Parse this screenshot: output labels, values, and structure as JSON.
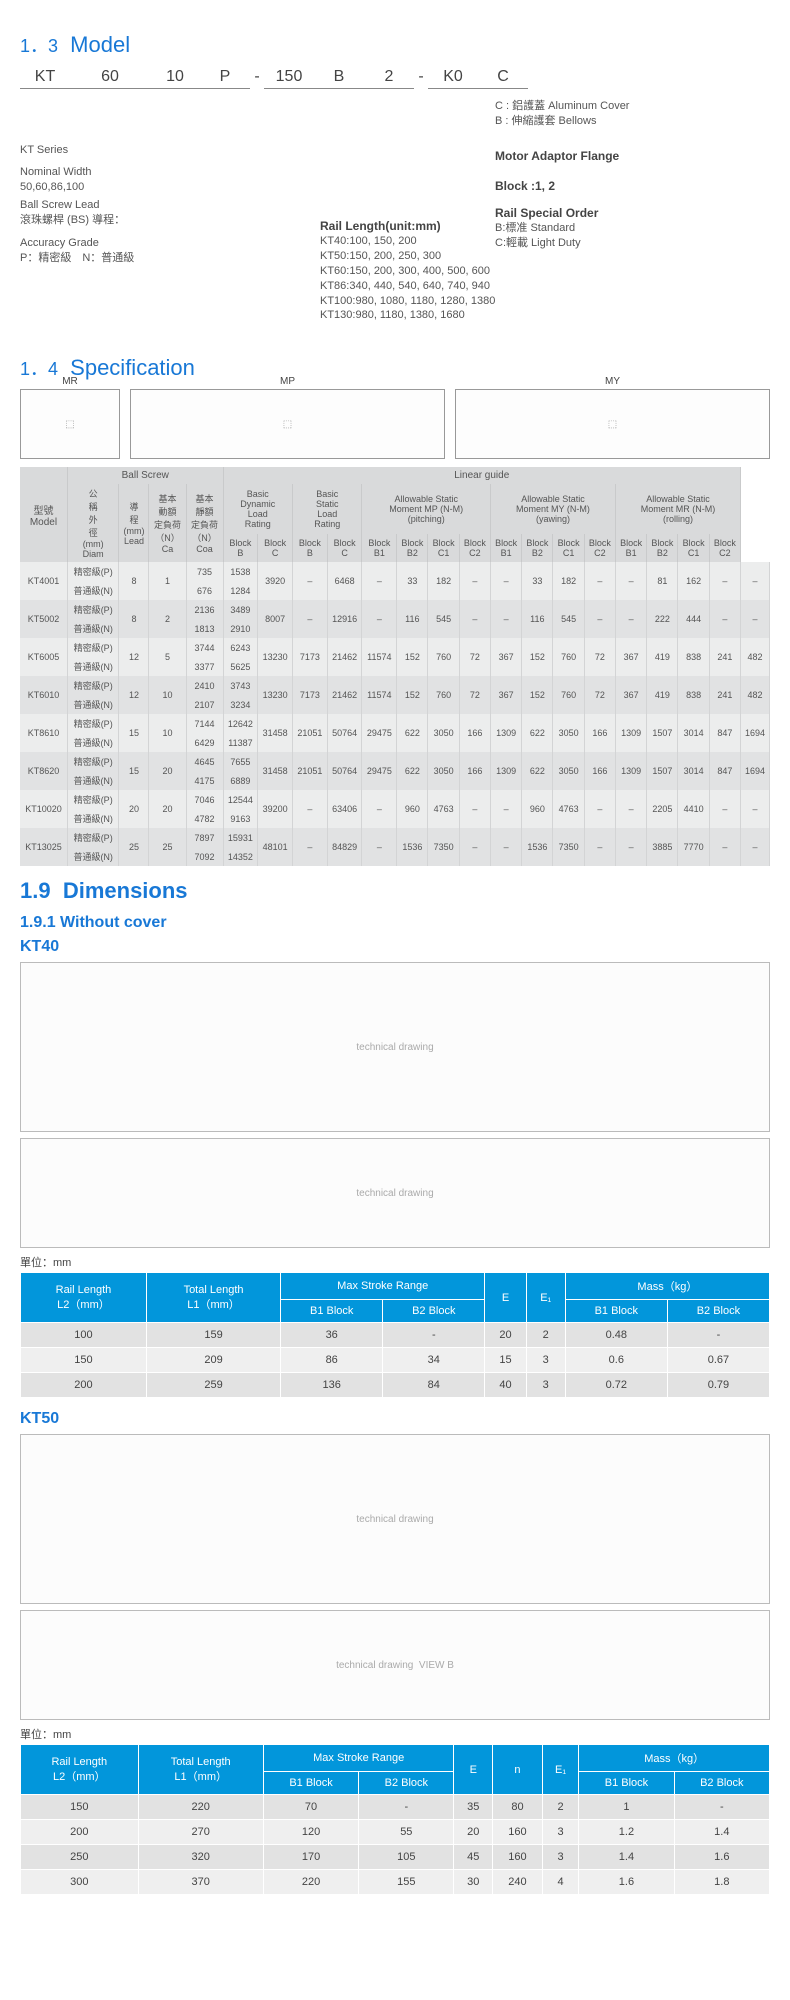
{
  "section_model": {
    "num": "1．3",
    "title": "Model"
  },
  "model_code": {
    "kt": "KT",
    "width": "60",
    "lead": "10",
    "grade": "P",
    "dash1": "-",
    "len": "150",
    "b": "B",
    "block": "2",
    "dash2": "-",
    "k0": "K0",
    "cover": "C"
  },
  "model_desc": {
    "series": "KT Series",
    "nominal_t": "Nominal Width",
    "nominal_v": "50,60,86,100",
    "bs_t": "Ball Screw Lead",
    "bs_v": "滾珠螺桿 (BS) 導程：",
    "acc_t": "Accuracy Grade",
    "acc_v": "P：精密級　N：普通級",
    "rail_title": "Rail Length(unit:mm)",
    "rail1": "KT40:100, 150, 200",
    "rail2": "KT50:150, 200, 250, 300",
    "rail3": "KT60:150, 200, 300, 400, 500, 600",
    "rail4": "KT86:340, 440, 540, 640, 740, 940",
    "rail5": "KT100:980, 1080, 1180, 1280, 1380",
    "rail6": "KT130:980, 1180, 1380, 1680",
    "cover_t": "C : 鋁護蓋 Aluminum Cover\nB : 伸縮護套 Bellows",
    "motor": "Motor Adaptor Flange",
    "block_t": "Block :1, 2",
    "special_t": "Rail Special Order",
    "special_v": "B:標准 Standard\nC:輕載 Light Duty"
  },
  "section_spec": {
    "num": "1．4",
    "title": "Specification"
  },
  "spec_head": {
    "ballscrew": "Ball Screw",
    "linear": "Linear guide",
    "model": "型號\nModel",
    "ext": "公\n稱\n外\n徑\n(mm)\nDiam",
    "lead": "導\n程\n(mm)\nLead",
    "dyn": "基本\n動額\n定負荷\n（N）\nCa",
    "sta": "基本\n靜額\n定負荷\n（N）\nCoa",
    "bdyn": "Basic\nDynamic\nLoad\nRating",
    "bsta": "Basic\nStatic\nLoad\nRating",
    "pitch": "Allowable Static\nMoment MP (N-M)\n(pitching)",
    "yaw": "Allowable Static\nMoment MY (N-M)\n(yawing)",
    "roll": "Allowable Static\nMoment MR (N-M)\n(rolling)",
    "blockB": "Block\nB",
    "blockC": "Block\nC",
    "b1": "Block\nB1",
    "b2": "Block\nB2",
    "c1": "Block\nC1",
    "c2": "Block\nC2"
  },
  "spec_rows": [
    {
      "m": "KT4001",
      "g": [
        "精密級(P)",
        "普通級(N)"
      ],
      "d": "8",
      "l": "1",
      "ca": [
        "735",
        "676"
      ],
      "coa": [
        "1538",
        "1284"
      ],
      "db": [
        "3920",
        ""
      ],
      "dc": [
        "–",
        ""
      ],
      "sb": [
        "6468",
        ""
      ],
      "sc": [
        "–",
        ""
      ],
      "pb1": [
        "33",
        ""
      ],
      "pb2": [
        "182",
        ""
      ],
      "pc1": [
        "–",
        ""
      ],
      "pc2": [
        "–",
        ""
      ],
      "yb1": [
        "33",
        ""
      ],
      "yb2": [
        "182",
        ""
      ],
      "yc1": [
        "–",
        ""
      ],
      "yc2": [
        "–",
        ""
      ],
      "rb1": [
        "81",
        ""
      ],
      "rb2": [
        "162",
        ""
      ],
      "rc1": [
        "–",
        ""
      ],
      "rc2": [
        "–",
        ""
      ]
    },
    {
      "m": "KT5002",
      "g": [
        "精密級(P)",
        "普通級(N)"
      ],
      "d": "8",
      "l": "2",
      "ca": [
        "2136",
        "1813"
      ],
      "coa": [
        "3489",
        "2910"
      ],
      "db": [
        "8007",
        ""
      ],
      "dc": [
        "–",
        ""
      ],
      "sb": [
        "12916",
        ""
      ],
      "sc": [
        "–",
        ""
      ],
      "pb1": [
        "116",
        ""
      ],
      "pb2": [
        "545",
        ""
      ],
      "pc1": [
        "–",
        ""
      ],
      "pc2": [
        "–",
        ""
      ],
      "yb1": [
        "116",
        ""
      ],
      "yb2": [
        "545",
        ""
      ],
      "yc1": [
        "–",
        ""
      ],
      "yc2": [
        "–",
        ""
      ],
      "rb1": [
        "222",
        ""
      ],
      "rb2": [
        "444",
        ""
      ],
      "rc1": [
        "–",
        ""
      ],
      "rc2": [
        "–",
        ""
      ]
    },
    {
      "m": "KT6005",
      "g": [
        "精密級(P)",
        "普通級(N)"
      ],
      "d": "12",
      "l": "5",
      "ca": [
        "3744",
        "3377"
      ],
      "coa": [
        "6243",
        "5625"
      ],
      "db": [
        "13230",
        ""
      ],
      "dc": [
        "7173",
        ""
      ],
      "sb": [
        "21462",
        ""
      ],
      "sc": [
        "11574",
        ""
      ],
      "pb1": [
        "152",
        ""
      ],
      "pb2": [
        "760",
        ""
      ],
      "pc1": [
        "72",
        ""
      ],
      "pc2": [
        "367",
        ""
      ],
      "yb1": [
        "152",
        ""
      ],
      "yb2": [
        "760",
        ""
      ],
      "yc1": [
        "72",
        ""
      ],
      "yc2": [
        "367",
        ""
      ],
      "rb1": [
        "419",
        ""
      ],
      "rb2": [
        "838",
        ""
      ],
      "rc1": [
        "241",
        ""
      ],
      "rc2": [
        "482",
        ""
      ]
    },
    {
      "m": "KT6010",
      "g": [
        "精密級(P)",
        "普通級(N)"
      ],
      "d": "12",
      "l": "10",
      "ca": [
        "2410",
        "2107"
      ],
      "coa": [
        "3743",
        "3234"
      ],
      "db": [
        "13230",
        ""
      ],
      "dc": [
        "7173",
        ""
      ],
      "sb": [
        "21462",
        ""
      ],
      "sc": [
        "11574",
        ""
      ],
      "pb1": [
        "152",
        ""
      ],
      "pb2": [
        "760",
        ""
      ],
      "pc1": [
        "72",
        ""
      ],
      "pc2": [
        "367",
        ""
      ],
      "yb1": [
        "152",
        ""
      ],
      "yb2": [
        "760",
        ""
      ],
      "yc1": [
        "72",
        ""
      ],
      "yc2": [
        "367",
        ""
      ],
      "rb1": [
        "419",
        ""
      ],
      "rb2": [
        "838",
        ""
      ],
      "rc1": [
        "241",
        ""
      ],
      "rc2": [
        "482",
        ""
      ]
    },
    {
      "m": "KT8610",
      "g": [
        "精密級(P)",
        "普通級(N)"
      ],
      "d": "15",
      "l": "10",
      "ca": [
        "7144",
        "6429"
      ],
      "coa": [
        "12642",
        "11387"
      ],
      "db": [
        "31458",
        ""
      ],
      "dc": [
        "21051",
        ""
      ],
      "sb": [
        "50764",
        ""
      ],
      "sc": [
        "29475",
        ""
      ],
      "pb1": [
        "622",
        ""
      ],
      "pb2": [
        "3050",
        ""
      ],
      "pc1": [
        "166",
        ""
      ],
      "pc2": [
        "1309",
        ""
      ],
      "yb1": [
        "622",
        ""
      ],
      "yb2": [
        "3050",
        ""
      ],
      "yc1": [
        "166",
        ""
      ],
      "yc2": [
        "1309",
        ""
      ],
      "rb1": [
        "1507",
        ""
      ],
      "rb2": [
        "3014",
        ""
      ],
      "rc1": [
        "847",
        ""
      ],
      "rc2": [
        "1694",
        ""
      ]
    },
    {
      "m": "KT8620",
      "g": [
        "精密級(P)",
        "普通級(N)"
      ],
      "d": "15",
      "l": "20",
      "ca": [
        "4645",
        "4175"
      ],
      "coa": [
        "7655",
        "6889"
      ],
      "db": [
        "31458",
        ""
      ],
      "dc": [
        "21051",
        ""
      ],
      "sb": [
        "50764",
        ""
      ],
      "sc": [
        "29475",
        ""
      ],
      "pb1": [
        "622",
        ""
      ],
      "pb2": [
        "3050",
        ""
      ],
      "pc1": [
        "166",
        ""
      ],
      "pc2": [
        "1309",
        ""
      ],
      "yb1": [
        "622",
        ""
      ],
      "yb2": [
        "3050",
        ""
      ],
      "yc1": [
        "166",
        ""
      ],
      "yc2": [
        "1309",
        ""
      ],
      "rb1": [
        "1507",
        ""
      ],
      "rb2": [
        "3014",
        ""
      ],
      "rc1": [
        "847",
        ""
      ],
      "rc2": [
        "1694",
        ""
      ]
    },
    {
      "m": "KT10020",
      "g": [
        "精密級(P)",
        "普通級(N)"
      ],
      "d": "20",
      "l": "20",
      "ca": [
        "7046",
        "4782"
      ],
      "coa": [
        "12544",
        "9163"
      ],
      "db": [
        "39200",
        ""
      ],
      "dc": [
        "–",
        ""
      ],
      "sb": [
        "63406",
        ""
      ],
      "sc": [
        "–",
        ""
      ],
      "pb1": [
        "960",
        ""
      ],
      "pb2": [
        "4763",
        ""
      ],
      "pc1": [
        "–",
        ""
      ],
      "pc2": [
        "–",
        ""
      ],
      "yb1": [
        "960",
        ""
      ],
      "yb2": [
        "4763",
        ""
      ],
      "yc1": [
        "–",
        ""
      ],
      "yc2": [
        "–",
        ""
      ],
      "rb1": [
        "2205",
        ""
      ],
      "rb2": [
        "4410",
        ""
      ],
      "rc1": [
        "–",
        ""
      ],
      "rc2": [
        "–",
        ""
      ]
    },
    {
      "m": "KT13025",
      "g": [
        "精密級(P)",
        "普通級(N)"
      ],
      "d": "25",
      "l": "25",
      "ca": [
        "7897",
        "7092"
      ],
      "coa": [
        "15931",
        "14352"
      ],
      "db": [
        "48101",
        ""
      ],
      "dc": [
        "–",
        ""
      ],
      "sb": [
        "84829",
        ""
      ],
      "sc": [
        "–",
        ""
      ],
      "pb1": [
        "1536",
        ""
      ],
      "pb2": [
        "7350",
        ""
      ],
      "pc1": [
        "–",
        ""
      ],
      "pc2": [
        "–",
        ""
      ],
      "yb1": [
        "1536",
        ""
      ],
      "yb2": [
        "7350",
        ""
      ],
      "yc1": [
        "–",
        ""
      ],
      "yc2": [
        "–",
        ""
      ],
      "rb1": [
        "3885",
        ""
      ],
      "rb2": [
        "7770",
        ""
      ],
      "rc1": [
        "–",
        ""
      ],
      "rc2": [
        "–",
        ""
      ]
    }
  ],
  "section_dim": {
    "num": "1.9",
    "title": "Dimensions"
  },
  "sub_without": "1.9.1 Without cover",
  "kt40_label": "KT40",
  "kt50_label": "KT50",
  "unit_label": "單位：mm",
  "dim_head_common": {
    "rail": "Rail Length\nL2（mm）",
    "total": "Total Length\nL1（mm）",
    "max": "Max Stroke Range",
    "b1": "B1 Block",
    "b2": "B2 Block",
    "e": "E",
    "e1": "E₁",
    "n": "n",
    "mass": "Mass（kg）"
  },
  "kt40_cols": [
    "rail",
    "total",
    "max",
    "e",
    "e1",
    "mass"
  ],
  "kt40_rows": [
    {
      "rail": "100",
      "total": "159",
      "b1": "36",
      "b2": "-",
      "e": "20",
      "e1": "2",
      "mb1": "0.48",
      "mb2": "-"
    },
    {
      "rail": "150",
      "total": "209",
      "b1": "86",
      "b2": "34",
      "e": "15",
      "e1": "3",
      "mb1": "0.6",
      "mb2": "0.67"
    },
    {
      "rail": "200",
      "total": "259",
      "b1": "136",
      "b2": "84",
      "e": "40",
      "e1": "3",
      "mb1": "0.72",
      "mb2": "0.79"
    }
  ],
  "kt50_rows": [
    {
      "rail": "150",
      "total": "220",
      "b1": "70",
      "b2": "-",
      "e": "35",
      "n": "80",
      "e1": "2",
      "mb1": "1",
      "mb2": "-"
    },
    {
      "rail": "200",
      "total": "270",
      "b1": "120",
      "b2": "55",
      "e": "20",
      "n": "160",
      "e1": "3",
      "mb1": "1.2",
      "mb2": "1.4"
    },
    {
      "rail": "250",
      "total": "320",
      "b1": "170",
      "b2": "105",
      "e": "45",
      "n": "160",
      "e1": "3",
      "mb1": "1.4",
      "mb2": "1.6"
    },
    {
      "rail": "300",
      "total": "370",
      "b1": "220",
      "b2": "155",
      "e": "30",
      "n": "240",
      "e1": "4",
      "mb1": "1.6",
      "mb2": "1.8"
    }
  ],
  "diagram_labels": {
    "mr": "MR",
    "mp": "MP",
    "my": "MY",
    "viewb": "VIEW B"
  }
}
